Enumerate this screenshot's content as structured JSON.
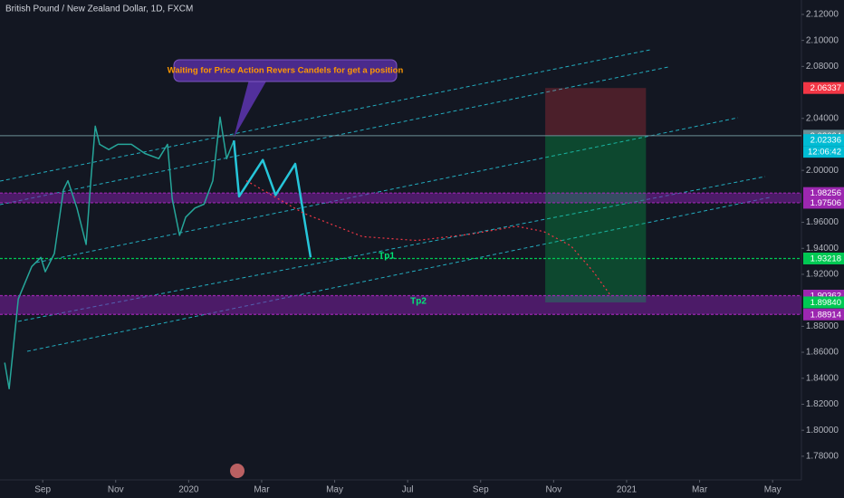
{
  "chart_data": {
    "type": "line",
    "title": "British Pound / New Zealand Dollar, 1D, FXCM",
    "annotation": "Waiting for Price Action Revers Candels for get a position",
    "tp1": "Tp1",
    "tp2": "Tp2",
    "countdown": "12:06:42",
    "xlim": [
      -1.17,
      20.79
    ],
    "ylim": [
      1.7618,
      2.1311
    ],
    "grid": false,
    "xticks": [
      {
        "value": 0,
        "label": "Sep"
      },
      {
        "value": 2,
        "label": "Nov"
      },
      {
        "value": 4,
        "label": "2020"
      },
      {
        "value": 6,
        "label": "Mar"
      },
      {
        "value": 8,
        "label": "May"
      },
      {
        "value": 10,
        "label": "Jul"
      },
      {
        "value": 12,
        "label": "Sep"
      },
      {
        "value": 14,
        "label": "Nov"
      },
      {
        "value": 16,
        "label": "2021"
      },
      {
        "value": 18,
        "label": "Mar"
      },
      {
        "value": 20,
        "label": "May"
      }
    ],
    "yticks": [
      {
        "value": 2.12,
        "label": "2.12000"
      },
      {
        "value": 2.1,
        "label": "2.10000"
      },
      {
        "value": 2.08,
        "label": "2.08000"
      },
      {
        "value": 2.04,
        "label": "2.04000"
      },
      {
        "value": 2.0,
        "label": "2.00000"
      },
      {
        "value": 1.96,
        "label": "1.96000"
      },
      {
        "value": 1.94,
        "label": "1.94000"
      },
      {
        "value": 1.92,
        "label": "1.92000"
      },
      {
        "value": 1.88,
        "label": "1.88000"
      },
      {
        "value": 1.86,
        "label": "1.86000"
      },
      {
        "value": 1.84,
        "label": "1.84000"
      },
      {
        "value": 1.82,
        "label": "1.82000"
      },
      {
        "value": 1.8,
        "label": "1.80000"
      },
      {
        "value": 1.78,
        "label": "1.78000"
      }
    ],
    "series": [
      {
        "color": "#26a69a",
        "width": 1.5,
        "dash": "none",
        "x": [
          -1.04,
          -0.92,
          -0.67,
          -0.3,
          -0.05,
          0.07,
          0.32,
          0.57,
          0.69,
          0.94,
          1.19,
          1.32,
          1.44,
          1.56,
          1.81,
          2.06,
          2.43,
          2.8,
          3.18,
          3.42,
          3.55,
          3.75,
          3.92,
          4.17,
          4.42,
          4.66,
          4.86,
          5.04,
          5.24
        ],
        "values": [
          1.852,
          1.832,
          1.901,
          1.926,
          1.933,
          1.922,
          1.936,
          1.985,
          1.992,
          1.971,
          1.943,
          1.992,
          2.034,
          2.02,
          2.016,
          2.02,
          2.02,
          2.013,
          2.009,
          2.02,
          1.978,
          1.95,
          1.964,
          1.971,
          1.974,
          1.992,
          2.041,
          2.009,
          2.023
        ]
      },
      {
        "color": "#26c6da",
        "width": 2.5,
        "dash": "none",
        "x": [
          5.24,
          5.38,
          6.03,
          6.38,
          6.92,
          7.34
        ],
        "values": [
          2.023,
          1.98,
          2.008,
          1.981,
          2.005,
          1.933
        ]
      },
      {
        "color": "#f23645",
        "width": 1.2,
        "dash": "2 3",
        "x": [
          5.58,
          7.15,
          8.76,
          10.25,
          11.74,
          12.98,
          13.72,
          14.47,
          15.09,
          15.58
        ],
        "values": [
          1.992,
          1.967,
          1.949,
          1.946,
          1.951,
          1.957,
          1.953,
          1.942,
          1.922,
          1.903
        ]
      }
    ],
    "bands": [
      {
        "from": 1.98256,
        "to": 1.97506,
        "color": "#7b1fa2"
      },
      {
        "from": 1.90362,
        "to": 1.88914,
        "color": "#7b1fa2"
      }
    ],
    "position": {
      "x": [
        13.77,
        16.53
      ],
      "stop": 2.06337,
      "entry": 2.02664,
      "target": 1.8984
    },
    "levels": [
      {
        "value": 2.06337,
        "color": "#f23645",
        "line": "none"
      },
      {
        "value": 2.02664,
        "color": "#6b8f96",
        "line": "solid"
      },
      {
        "value": 2.02336,
        "color": "#00bcd4",
        "line": "none"
      },
      {
        "value": 1.98256,
        "color": "#9c27b0",
        "line": "dashed"
      },
      {
        "value": 1.97506,
        "color": "#9c27b0",
        "line": "dashed"
      },
      {
        "value": 1.93218,
        "color": "#00c853",
        "line": "dashed"
      },
      {
        "value": 1.90362,
        "color": "#9c27b0",
        "line": "dashed"
      },
      {
        "value": 1.8984,
        "label": "1.89840",
        "color": "#00c853",
        "line": "none"
      },
      {
        "value": 1.88914,
        "color": "#9c27b0",
        "line": "dashed"
      }
    ]
  }
}
